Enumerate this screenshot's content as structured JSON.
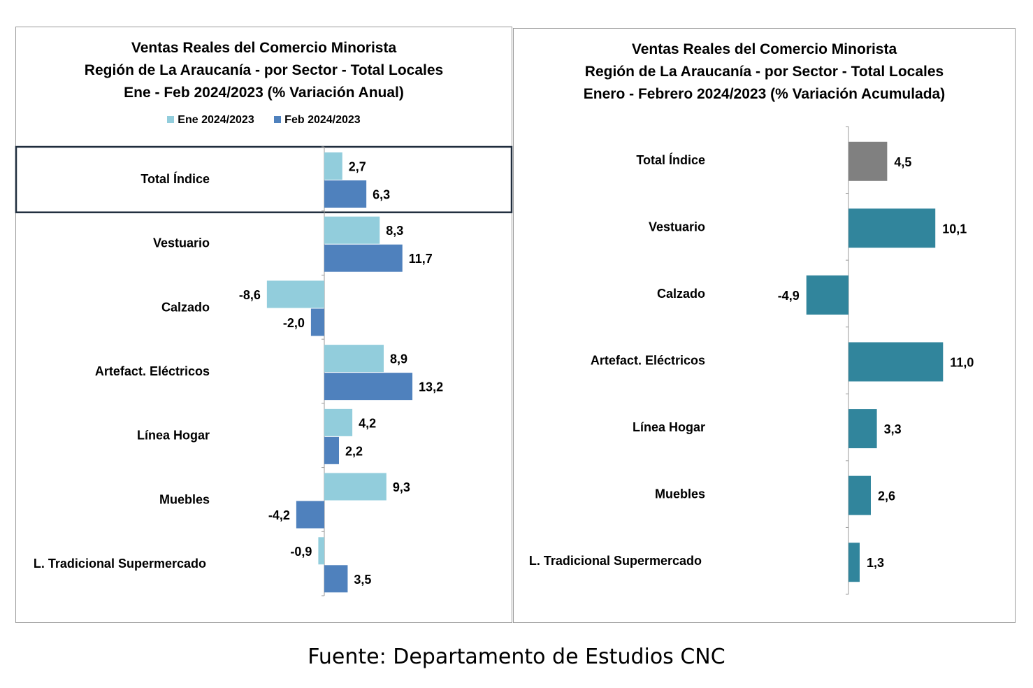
{
  "charts": {
    "left": {
      "title_lines": [
        "Ventas Reales del Comercio Minorista",
        "Región de La Araucanía - por Sector - Total Locales",
        "Ene - Feb 2024/2023 (% Variación Anual)"
      ]
    },
    "right": {
      "title_lines": [
        "Ventas Reales del Comercio Minorista",
        "Región de La Araucanía - por Sector - Total Locales",
        "Enero - Febrero 2024/2023 (% Variación Acumulada)"
      ]
    }
  },
  "chart_data": [
    {
      "type": "bar",
      "orientation": "horizontal",
      "title": "Ventas Reales del Comercio Minorista Región de La Araucanía - por Sector - Total Locales Ene - Feb 2024/2023 (% Variación Anual)",
      "categories": [
        "Total Índice",
        "Vestuario",
        "Calzado",
        "Artefact. Eléctricos",
        "Línea Hogar",
        "Muebles",
        "L. Tradicional Supermercado"
      ],
      "series": [
        {
          "name": "Ene 2024/2023",
          "color": "#92CDDC",
          "values": [
            2.7,
            8.3,
            -8.6,
            8.9,
            4.2,
            9.3,
            -0.9
          ],
          "labels": [
            "2,7",
            "8,3",
            "-8,6",
            "8,9",
            "4,2",
            "9,3",
            "-0,9"
          ]
        },
        {
          "name": "Feb 2024/2023",
          "color": "#4F81BD",
          "values": [
            6.3,
            11.7,
            -2.0,
            13.2,
            2.2,
            -4.2,
            3.5
          ],
          "labels": [
            "6,3",
            "11,7",
            "-2,0",
            "13,2",
            "2,2",
            "-4,2",
            "3,5"
          ]
        }
      ],
      "legend": "top",
      "highlighted_category": "Total Índice"
    },
    {
      "type": "bar",
      "orientation": "horizontal",
      "title": "Ventas Reales del Comercio Minorista Región de La Araucanía - por Sector - Total Locales Enero - Febrero 2024/2023 (% Variación Acumulada)",
      "categories": [
        "Total Índice",
        "Vestuario",
        "Calzado",
        "Artefact. Eléctricos",
        "Línea Hogar",
        "Muebles",
        "L. Tradicional Supermercado"
      ],
      "series": [
        {
          "values": [
            4.5,
            10.1,
            -4.9,
            11.0,
            3.3,
            2.6,
            1.3
          ],
          "labels": [
            "4,5",
            "10,1",
            "-4,9",
            "11,0",
            "3,3",
            "2,6",
            "1,3"
          ]
        }
      ],
      "colors": {
        "total": "#808080",
        "sector": "#31859C"
      }
    }
  ],
  "source": "Fuente: Departamento de Estudios CNC"
}
